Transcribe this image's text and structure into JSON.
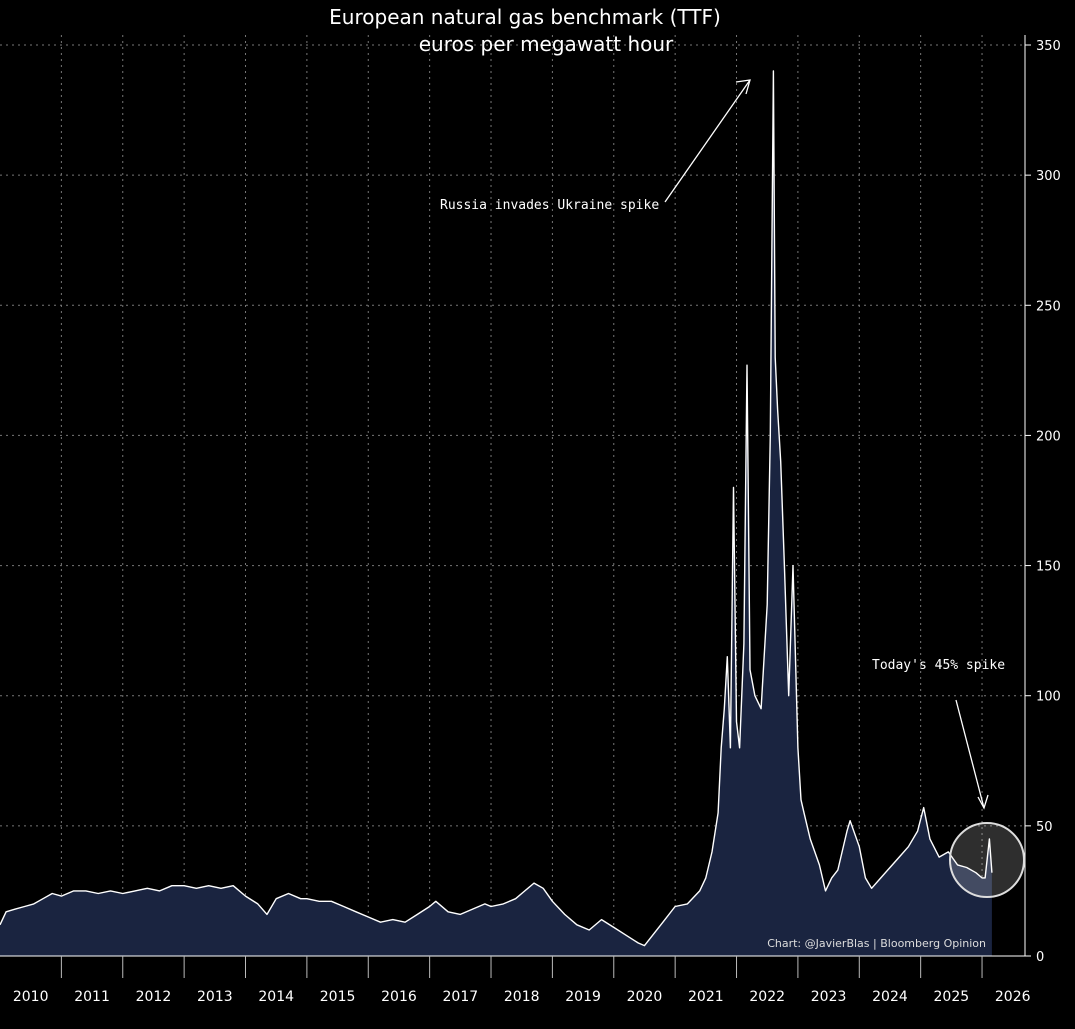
{
  "chart_data": {
    "type": "area",
    "title": "European natural gas benchmark (TTF)",
    "subtitle": "euros per megawatt hour",
    "xlabel": "",
    "ylabel": "",
    "y_axis_position": "right",
    "ylim": [
      0,
      360
    ],
    "y_ticks": [
      0,
      50,
      100,
      150,
      200,
      250,
      300,
      350
    ],
    "x_tick_labels": [
      "2010",
      "2011",
      "2012",
      "2013",
      "2014",
      "2015",
      "2016",
      "2017",
      "2018",
      "2019",
      "2020",
      "2021",
      "2022",
      "2023",
      "2024",
      "2025",
      "2026"
    ],
    "grid": true,
    "colors": {
      "line": "#ffffff",
      "fill": "#1a2440",
      "background": "#000000",
      "grid": "#777777"
    },
    "series": [
      {
        "values": [
          [
            2010.0,
            12
          ],
          [
            2010.1,
            17
          ],
          [
            2010.25,
            18
          ],
          [
            2010.4,
            19
          ],
          [
            2010.55,
            20
          ],
          [
            2010.7,
            22
          ],
          [
            2010.85,
            24
          ],
          [
            2011.0,
            23
          ],
          [
            2011.2,
            25
          ],
          [
            2011.4,
            25
          ],
          [
            2011.6,
            24
          ],
          [
            2011.8,
            25
          ],
          [
            2012.0,
            24
          ],
          [
            2012.2,
            25
          ],
          [
            2012.4,
            26
          ],
          [
            2012.6,
            25
          ],
          [
            2012.8,
            27
          ],
          [
            2013.0,
            27
          ],
          [
            2013.2,
            26
          ],
          [
            2013.4,
            27
          ],
          [
            2013.6,
            26
          ],
          [
            2013.8,
            27
          ],
          [
            2014.0,
            23
          ],
          [
            2014.2,
            20
          ],
          [
            2014.35,
            16
          ],
          [
            2014.5,
            22
          ],
          [
            2014.7,
            24
          ],
          [
            2014.9,
            22
          ],
          [
            2015.0,
            22
          ],
          [
            2015.2,
            21
          ],
          [
            2015.4,
            21
          ],
          [
            2015.6,
            19
          ],
          [
            2015.8,
            17
          ],
          [
            2016.0,
            15
          ],
          [
            2016.2,
            13
          ],
          [
            2016.4,
            14
          ],
          [
            2016.6,
            13
          ],
          [
            2016.8,
            16
          ],
          [
            2017.0,
            19
          ],
          [
            2017.1,
            21
          ],
          [
            2017.3,
            17
          ],
          [
            2017.5,
            16
          ],
          [
            2017.7,
            18
          ],
          [
            2017.9,
            20
          ],
          [
            2018.0,
            19
          ],
          [
            2018.2,
            20
          ],
          [
            2018.4,
            22
          ],
          [
            2018.55,
            25
          ],
          [
            2018.7,
            28
          ],
          [
            2018.85,
            26
          ],
          [
            2019.0,
            21
          ],
          [
            2019.2,
            16
          ],
          [
            2019.4,
            12
          ],
          [
            2019.6,
            10
          ],
          [
            2019.8,
            14
          ],
          [
            2020.0,
            11
          ],
          [
            2020.2,
            8
          ],
          [
            2020.4,
            5
          ],
          [
            2020.5,
            4
          ],
          [
            2020.6,
            7
          ],
          [
            2020.8,
            13
          ],
          [
            2021.0,
            19
          ],
          [
            2021.2,
            20
          ],
          [
            2021.4,
            25
          ],
          [
            2021.5,
            30
          ],
          [
            2021.6,
            40
          ],
          [
            2021.7,
            55
          ],
          [
            2021.75,
            80
          ],
          [
            2021.8,
            95
          ],
          [
            2021.85,
            115
          ],
          [
            2021.9,
            80
          ],
          [
            2021.95,
            180
          ],
          [
            2022.0,
            90
          ],
          [
            2022.05,
            80
          ],
          [
            2022.12,
            120
          ],
          [
            2022.17,
            227
          ],
          [
            2022.22,
            110
          ],
          [
            2022.3,
            100
          ],
          [
            2022.4,
            95
          ],
          [
            2022.5,
            135
          ],
          [
            2022.55,
            200
          ],
          [
            2022.6,
            340
          ],
          [
            2022.63,
            230
          ],
          [
            2022.67,
            210
          ],
          [
            2022.72,
            190
          ],
          [
            2022.78,
            150
          ],
          [
            2022.85,
            100
          ],
          [
            2022.92,
            150
          ],
          [
            2023.0,
            80
          ],
          [
            2023.05,
            60
          ],
          [
            2023.1,
            55
          ],
          [
            2023.2,
            45
          ],
          [
            2023.35,
            35
          ],
          [
            2023.45,
            25
          ],
          [
            2023.55,
            30
          ],
          [
            2023.65,
            33
          ],
          [
            2023.8,
            48
          ],
          [
            2023.85,
            52
          ],
          [
            2024.0,
            42
          ],
          [
            2024.1,
            30
          ],
          [
            2024.2,
            26
          ],
          [
            2024.35,
            30
          ],
          [
            2024.5,
            34
          ],
          [
            2024.65,
            38
          ],
          [
            2024.8,
            42
          ],
          [
            2024.95,
            48
          ],
          [
            2025.05,
            57
          ],
          [
            2025.15,
            45
          ],
          [
            2025.3,
            38
          ],
          [
            2025.45,
            40
          ],
          [
            2025.6,
            35
          ],
          [
            2025.75,
            34
          ],
          [
            2025.9,
            32
          ],
          [
            2026.0,
            30
          ],
          [
            2026.05,
            30
          ],
          [
            2026.12,
            45
          ],
          [
            2026.16,
            32
          ]
        ]
      }
    ],
    "annotations": [
      {
        "text": "Russia invades Ukraine spike"
      },
      {
        "text": "Today's 45% spike"
      }
    ],
    "credit": "Chart: @JavierBlas | Bloomberg Opinion"
  }
}
